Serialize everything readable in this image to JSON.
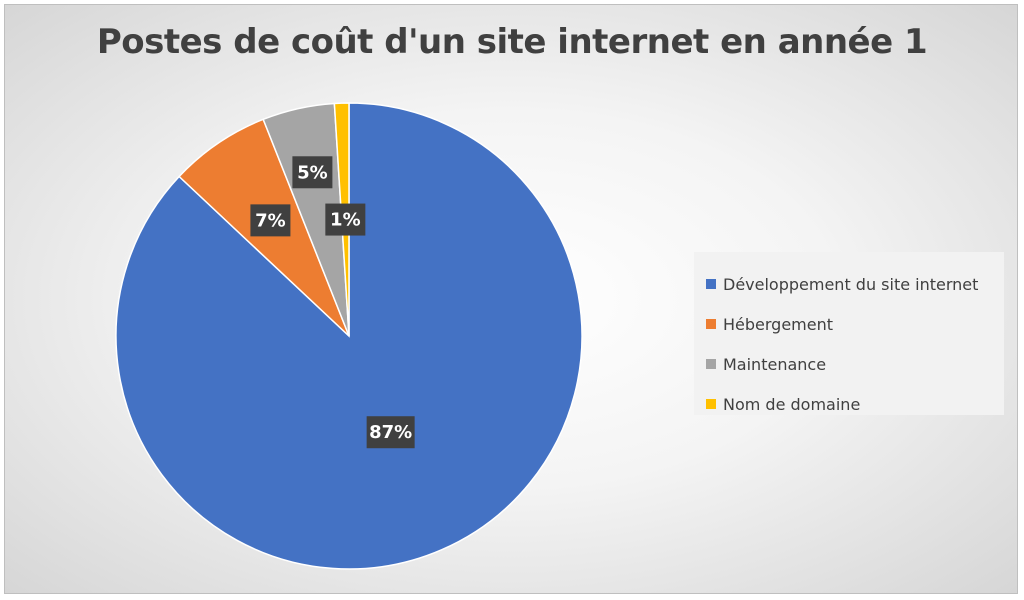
{
  "chart_data": {
    "type": "pie",
    "title": "Postes de coût d'un site internet en année 1",
    "legend_position": "right",
    "slices": [
      {
        "name": "Développement du site internet",
        "value": 87,
        "label": "87%",
        "color": "#4472C4"
      },
      {
        "name": "Hébergement",
        "value": 7,
        "label": "7%",
        "color": "#ED7D31"
      },
      {
        "name": "Maintenance",
        "value": 5,
        "label": "5%",
        "color": "#A5A5A5"
      },
      {
        "name": "Nom de domaine",
        "value": 1,
        "label": "1%",
        "color": "#FFC000"
      }
    ]
  }
}
